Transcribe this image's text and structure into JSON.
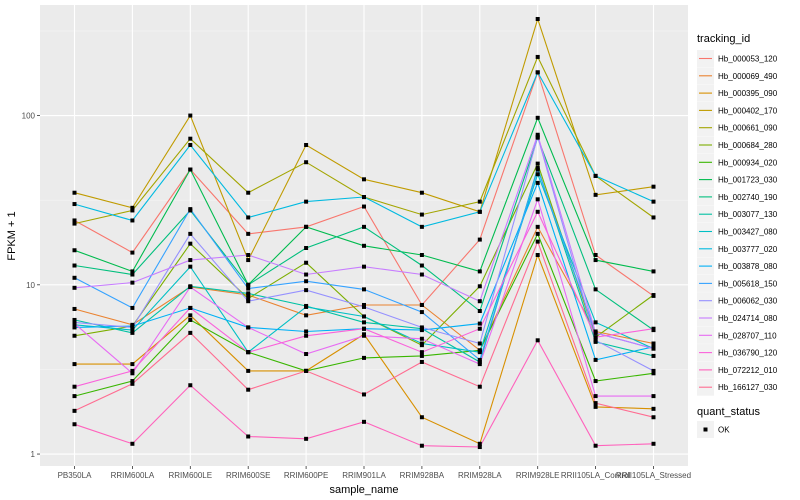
{
  "chart_data": {
    "type": "line",
    "title": "",
    "xlabel": "sample_name",
    "ylabel": "FPKM + 1",
    "y_scale": "log10",
    "ylim": [
      0.85,
      450
    ],
    "y_ticks": [
      1,
      10,
      100
    ],
    "y_tick_labels": [
      "1",
      "10",
      "100"
    ],
    "grid": true,
    "legend_position": "right",
    "categories": [
      "PB350LA",
      "RRIM600LA",
      "RRIM600LE",
      "RRIM600SE",
      "RRIM600PE",
      "RRIM901LA",
      "RRIM928BA",
      "RRIM928LA",
      "RRIM928LE",
      "RRII105LA_Control",
      "RRII105LA_Stressed"
    ],
    "legend_color_title": "tracking_id",
    "legend_shape_title": "quant_status",
    "legend_shape_entries": [
      "OK"
    ],
    "series": [
      {
        "name": "Hb_000053_120",
        "color": "#F8766D",
        "values": [
          24,
          15.5,
          48,
          20,
          22,
          29,
          7.6,
          18.5,
          180,
          15,
          8.6
        ]
      },
      {
        "name": "Hb_000069_490",
        "color": "#EA8331",
        "values": [
          7.2,
          5.8,
          9.7,
          8.7,
          6.6,
          7.6,
          7.6,
          4.1,
          22,
          5.3,
          4.5
        ]
      },
      {
        "name": "Hb_000395_090",
        "color": "#D89000",
        "values": [
          3.4,
          3.4,
          6.6,
          3.1,
          3.1,
          5.1,
          1.65,
          1.15,
          15,
          1.9,
          1.85
        ]
      },
      {
        "name": "Hb_000402_170",
        "color": "#C09B00",
        "values": [
          35,
          28.5,
          100,
          14,
          67,
          42,
          35,
          27,
          372,
          34,
          38
        ]
      },
      {
        "name": "Hb_000661_090",
        "color": "#A3A500",
        "values": [
          23,
          27.5,
          73,
          35,
          53,
          33,
          26,
          31,
          222,
          44,
          25
        ]
      },
      {
        "name": "Hb_000684_280",
        "color": "#7CAE00",
        "values": [
          5.0,
          5.7,
          17.5,
          8.3,
          13.5,
          6.5,
          4.4,
          9.8,
          52,
          4.9,
          8.7
        ]
      },
      {
        "name": "Hb_000934_020",
        "color": "#39B600",
        "values": [
          2.2,
          2.7,
          6.2,
          4.0,
          3.1,
          3.7,
          3.8,
          4.1,
          20,
          2.7,
          3.0
        ]
      },
      {
        "name": "Hb_001723_030",
        "color": "#00BB4E",
        "values": [
          16,
          12,
          48,
          10,
          22,
          17,
          15,
          12,
          97,
          14,
          12
        ]
      },
      {
        "name": "Hb_002740_190",
        "color": "#00BF7D",
        "values": [
          13,
          11.5,
          27.5,
          10,
          16.5,
          22,
          13,
          7.0,
          74,
          9.4,
          5.4
        ]
      },
      {
        "name": "Hb_003077_130",
        "color": "#00C1A3",
        "values": [
          6.2,
          5.2,
          9.8,
          8.9,
          7.5,
          6.0,
          5.5,
          3.5,
          49,
          4.6,
          3.8
        ]
      },
      {
        "name": "Hb_003427_080",
        "color": "#00BFC4",
        "values": [
          5.8,
          5.4,
          12.8,
          4.0,
          7.4,
          6.5,
          4.5,
          4.0,
          45,
          6.0,
          4.2
        ]
      },
      {
        "name": "Hb_003777_020",
        "color": "#00BAE0",
        "values": [
          30,
          24,
          67,
          25,
          31,
          33,
          22,
          27,
          180,
          44,
          31
        ]
      },
      {
        "name": "Hb_003878_080",
        "color": "#00B0F6",
        "values": [
          5.6,
          5.7,
          7.3,
          5.6,
          5.3,
          5.5,
          5.4,
          5.9,
          40,
          3.6,
          4.3
        ]
      },
      {
        "name": "Hb_005618_150",
        "color": "#35A2FF",
        "values": [
          11,
          7.3,
          28,
          9.5,
          10.5,
          9.4,
          6.9,
          3.6,
          48,
          5.2,
          4.2
        ]
      },
      {
        "name": "Hb_006062_030",
        "color": "#9590FF",
        "values": [
          6.0,
          5.6,
          20,
          8.0,
          9.3,
          7.4,
          5.6,
          4.5,
          75,
          4.7,
          3.1
        ]
      },
      {
        "name": "Hb_024714_080",
        "color": "#C77CFF",
        "values": [
          9.6,
          10.3,
          14,
          15,
          11.5,
          12.8,
          11.5,
          8.0,
          77,
          5.2,
          4.2
        ]
      },
      {
        "name": "Hb_028707_110",
        "color": "#E76BF3",
        "values": [
          5.9,
          3.0,
          9.7,
          5.6,
          3.9,
          5.0,
          4.8,
          3.4,
          32,
          2.2,
          2.2
        ]
      },
      {
        "name": "Hb_036790_120",
        "color": "#FA62DB",
        "values": [
          2.5,
          3.1,
          7.3,
          4.0,
          5.0,
          5.5,
          4.0,
          5.5,
          27,
          4.9,
          5.5
        ]
      },
      {
        "name": "Hb_072212_010",
        "color": "#FF62BC",
        "values": [
          1.5,
          1.15,
          2.55,
          1.27,
          1.23,
          1.55,
          1.12,
          1.1,
          4.7,
          1.12,
          1.15
        ]
      },
      {
        "name": "Hb_166127_030",
        "color": "#FF6C91",
        "values": [
          1.8,
          2.6,
          5.2,
          2.4,
          3.1,
          2.25,
          3.5,
          2.5,
          18,
          2.0,
          1.65
        ]
      }
    ]
  }
}
